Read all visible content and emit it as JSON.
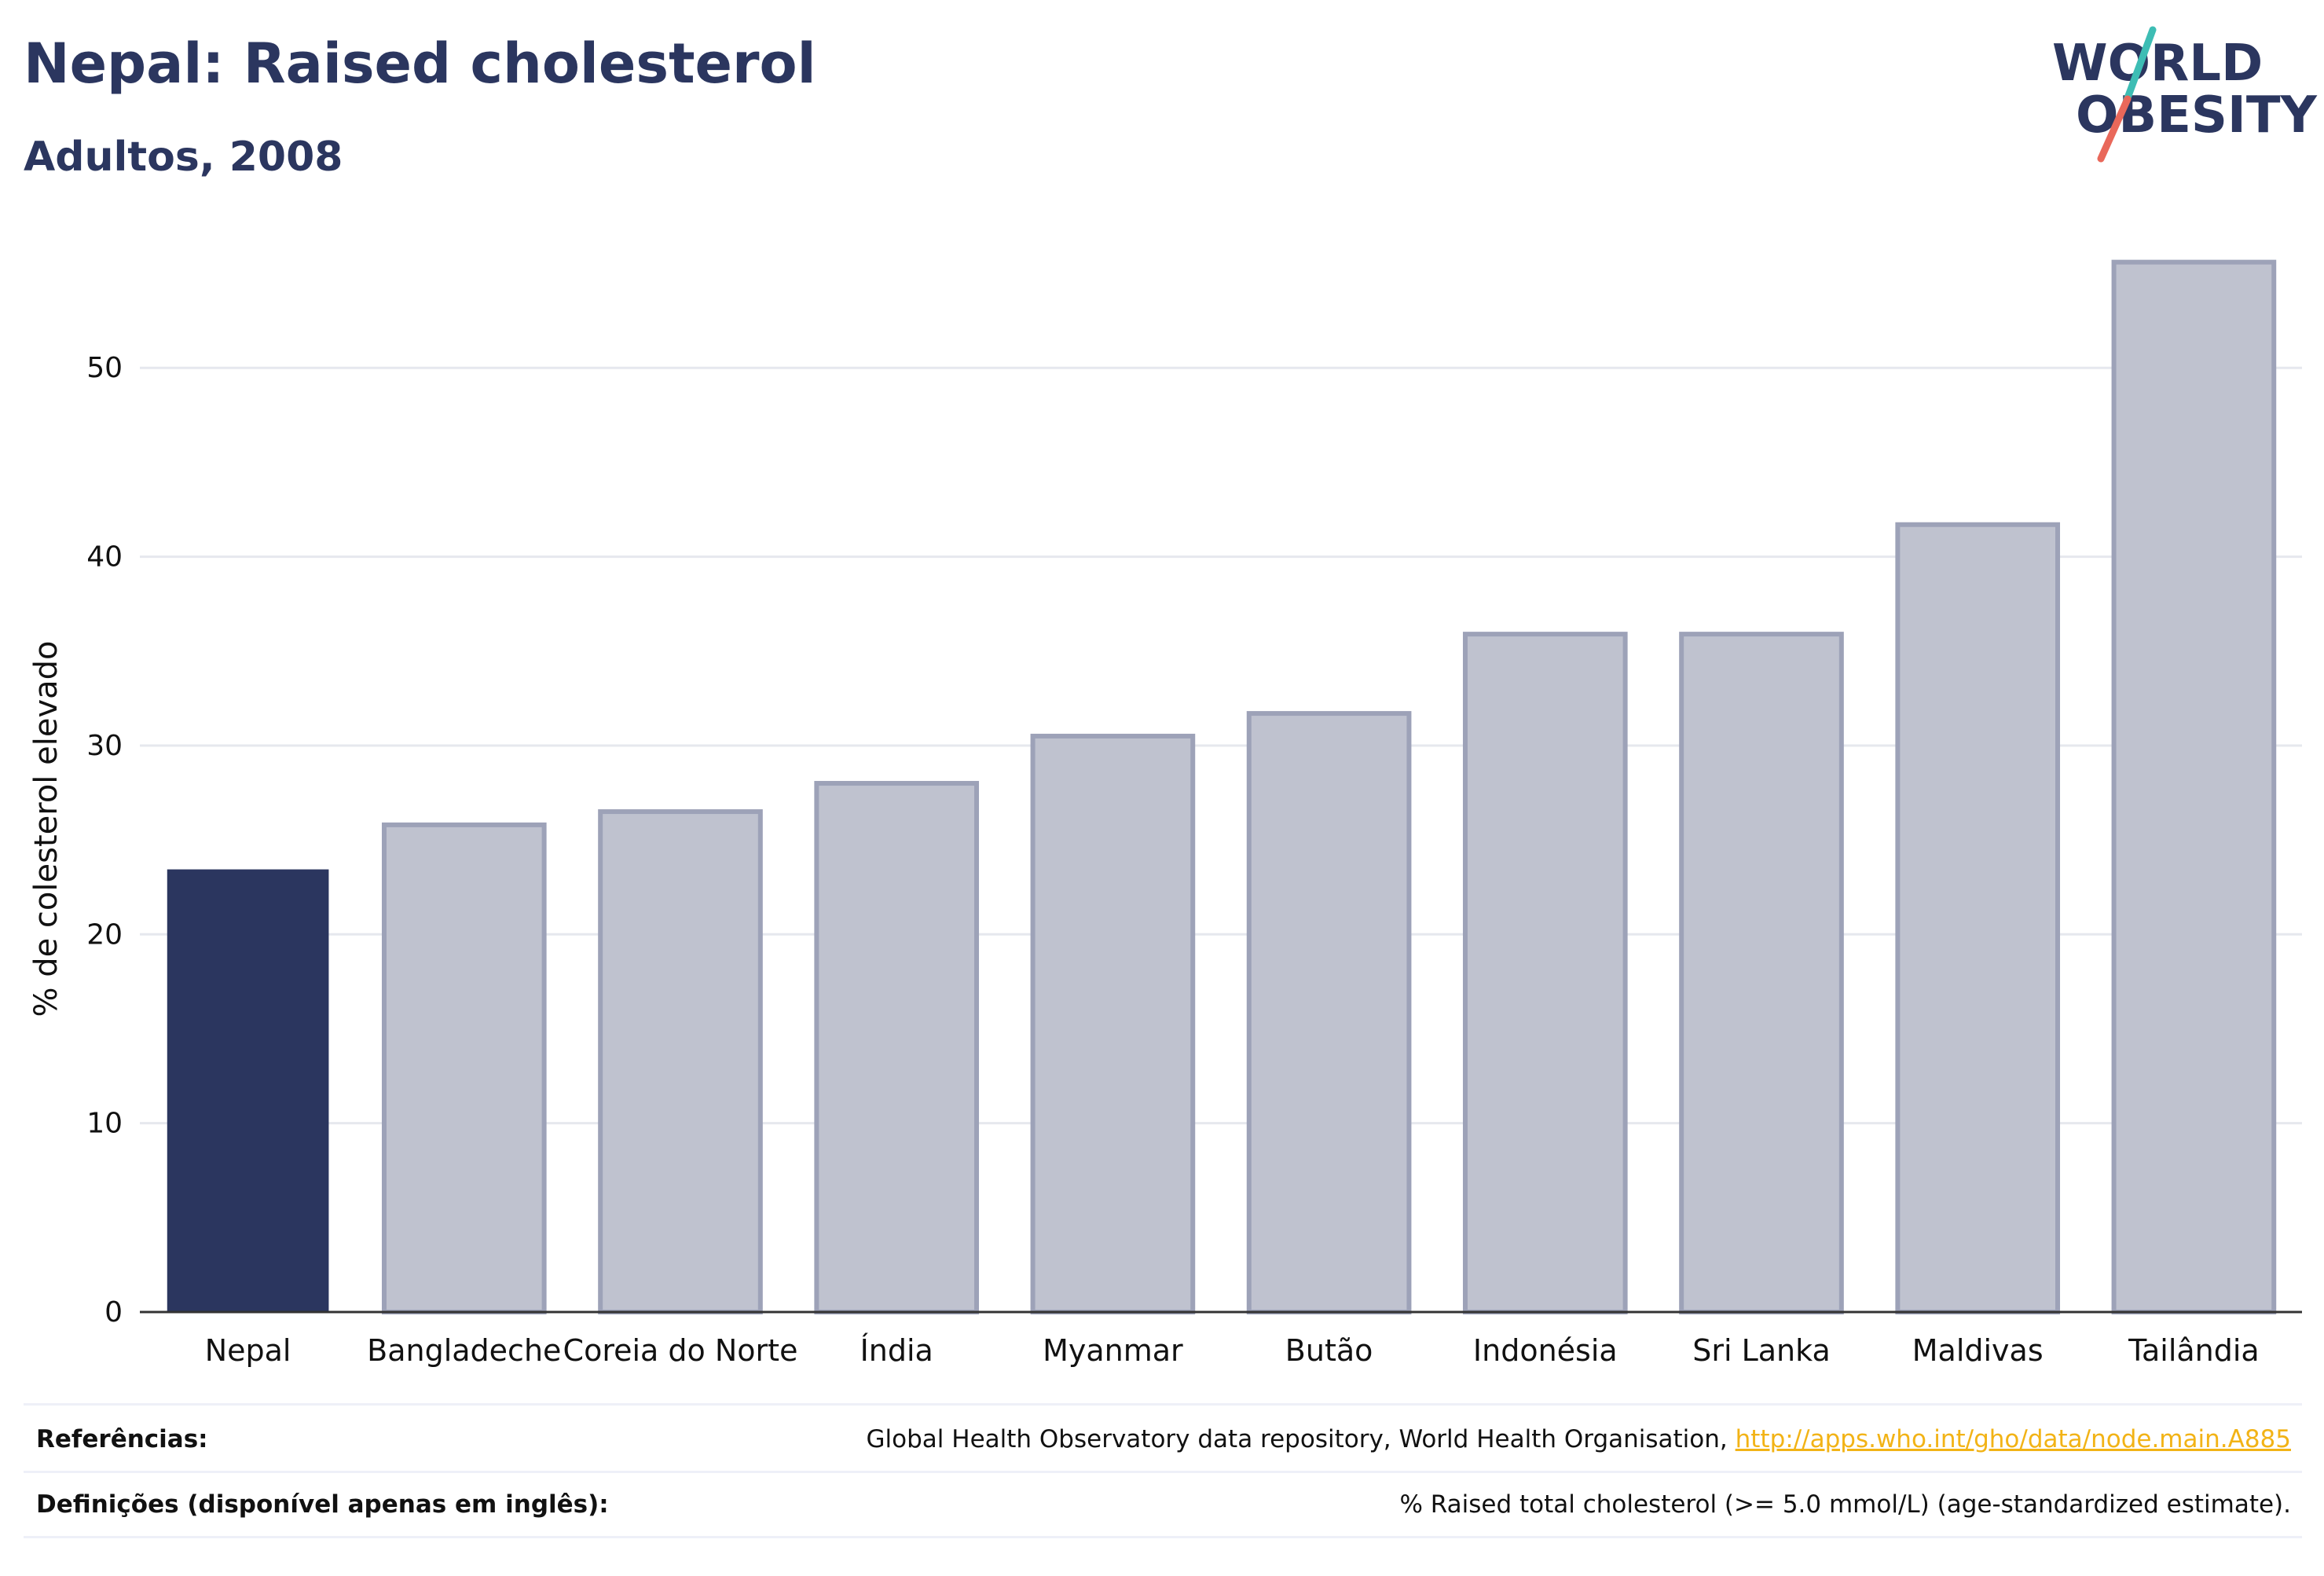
{
  "header": {
    "title": "Nepal: Raised cholesterol",
    "subtitle": "Adultos, 2008"
  },
  "logo": {
    "line1": "WORLD",
    "line2": "OBESITY"
  },
  "colors": {
    "highlight": "#2b365f",
    "others": "#bfc2cf",
    "others_border": "#9da2b8",
    "gridline": "#e6e8ee",
    "link": "#f2b316",
    "logo_teal": "#3dbdb4",
    "logo_coral": "#e9685a"
  },
  "chart_data": {
    "type": "bar",
    "title": "",
    "xlabel": "",
    "ylabel": "% de colesterol elevado",
    "categories": [
      "Nepal",
      "Bangladeche",
      "Coreia do Norte",
      "Índia",
      "Myanmar",
      "Butão",
      "Indonésia",
      "Sri Lanka",
      "Maldivas",
      "Tailândia"
    ],
    "values": [
      23.4,
      25.8,
      26.5,
      28.0,
      30.5,
      31.7,
      35.9,
      35.9,
      41.7,
      55.6
    ],
    "highlight_index": 0,
    "ylim": [
      0,
      57
    ],
    "yticks": [
      0,
      10,
      20,
      30,
      40,
      50
    ],
    "grid": true,
    "legend": "none"
  },
  "footer": {
    "references_label": "Referências:",
    "references_text": "Global Health Observatory data repository, World Health Organisation, ",
    "references_link": "http://apps.who.int/gho/data/node.main.A885",
    "definitions_label": "Definições (disponível apenas em inglês):",
    "definitions_text": "% Raised total cholesterol (>= 5.0 mmol/L) (age-standardized estimate)."
  }
}
